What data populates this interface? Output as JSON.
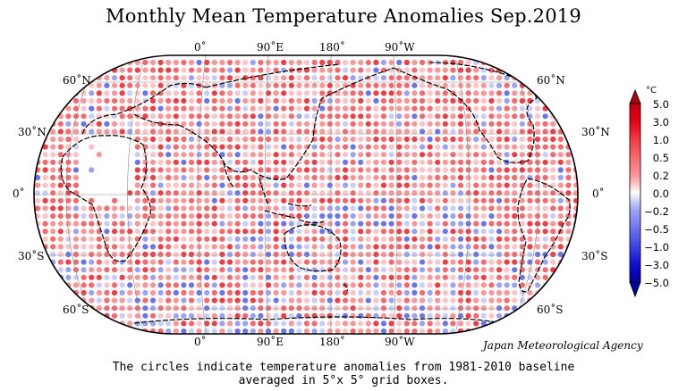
{
  "title": "Monthly Mean Temperature Anomalies Sep.2019",
  "top_lon_labels": [
    "0˚",
    "90˚E",
    "180˚",
    "90˚W"
  ],
  "bottom_lon_labels": [
    "0˚",
    "90˚E",
    "180˚",
    "90˚W"
  ],
  "left_lat_labels": [
    "60˚N",
    "30˚N",
    "0˚",
    "30˚S",
    "60˚S"
  ],
  "right_lat_labels": [
    "60˚N",
    "30˚N",
    "0˚",
    "30˚S",
    "60˚S"
  ],
  "credit": "Japan Meteorological Agency",
  "caption_line1": "The circles indicate temperature anomalies from 1981-2010 baseline",
  "caption_line2": "averaged in 5°x 5° grid boxes.",
  "colorbar": {
    "unit": "°C",
    "labels": [
      "5.0",
      "3.0",
      "1.0",
      "0.5",
      "0.2",
      "0.0",
      "−0.2",
      "−0.5",
      "−1.0",
      "−3.0",
      "−5.0"
    ],
    "colors": [
      "#e60012",
      "#f23c44",
      "#f7686c",
      "#fa9598",
      "#fcc4c6",
      "#ffffff",
      "#c8cdfa",
      "#9aa2f3",
      "#6b75ea",
      "#3c44e0",
      "#1010d0"
    ]
  }
}
